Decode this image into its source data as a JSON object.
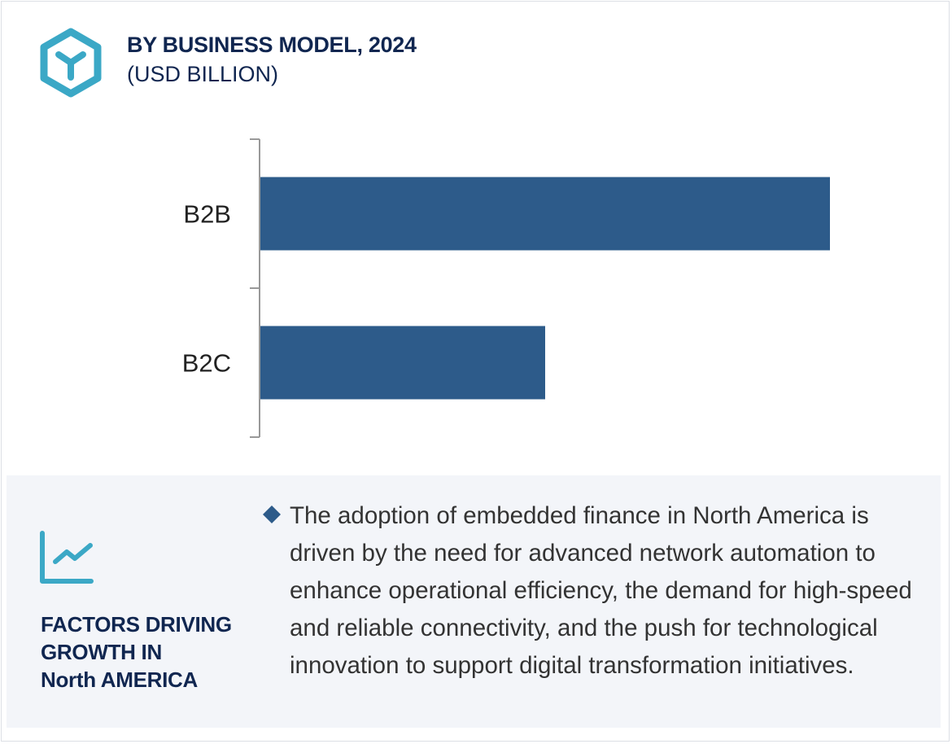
{
  "header": {
    "title": "BY BUSINESS MODEL, 2024",
    "subtitle": "(USD BILLION)",
    "icon": "hexagon-y-logo-icon"
  },
  "colors": {
    "bar": "#2d5b8a",
    "accent": "#3ba8c6",
    "heading": "#102650",
    "panel": "#f3f5f9"
  },
  "chart_data": {
    "type": "bar",
    "orientation": "horizontal",
    "categories": [
      "B2B",
      "B2C"
    ],
    "values": [
      1.0,
      0.5
    ],
    "title": "BY BUSINESS MODEL, 2024",
    "ylabel": "",
    "xlabel": "",
    "unit": "(USD BILLION)",
    "grid": false,
    "value_axis_labels": false
  },
  "factors": {
    "icon": "line-chart-trend-icon",
    "heading_lines": [
      "FACTORS DRIVING",
      "GROWTH IN",
      "North AMERICA"
    ],
    "bullet_icon": "diamond-bullet-icon",
    "text": "The adoption of embedded finance in North America is driven by the need for advanced network automation to enhance operational efficiency, the demand for high-speed and reliable connectivity, and the push for technological innovation to support digital transformation initiatives."
  }
}
